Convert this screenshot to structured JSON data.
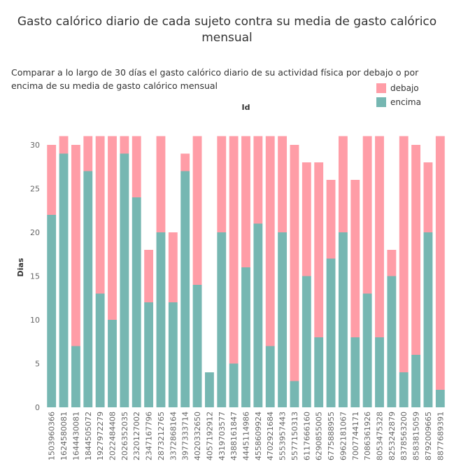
{
  "chart_data": {
    "type": "bar",
    "stacked": true,
    "title": "Gasto calórico diario de cada sujeto contra su media de gasto calórico mensual",
    "subtitle": "Comparar a lo largo de 30 días el gasto calórico diario de su actividad física por debajo o por encima de su media de gasto calórico mensual",
    "column_header": "Id",
    "xlabel": "",
    "ylabel": "Dias",
    "ylim": [
      0,
      32
    ],
    "yticks": [
      0,
      5,
      10,
      15,
      20,
      25,
      30
    ],
    "grid": false,
    "legend_position": "top-right",
    "categories": [
      "1503960366",
      "1624580081",
      "1644430081",
      "1844505072",
      "1927972279",
      "2022484408",
      "2026352035",
      "2320127002",
      "2347167796",
      "2873212765",
      "3372868164",
      "3977333714",
      "4020332650",
      "4057192912",
      "4319703577",
      "4388161847",
      "4445114986",
      "4558609924",
      "4702921684",
      "5553957443",
      "5577150313",
      "6117666160",
      "6290855005",
      "6775888955",
      "6962181067",
      "7007744171",
      "7086361926",
      "8053475328",
      "8253242879",
      "8378563200",
      "8583815059",
      "8792009665",
      "8877689391"
    ],
    "series": [
      {
        "name": "encima",
        "color": "#76b7b2",
        "values": [
          22,
          29,
          7,
          27,
          13,
          10,
          29,
          24,
          12,
          20,
          12,
          27,
          14,
          4,
          20,
          5,
          16,
          21,
          7,
          20,
          3,
          15,
          8,
          17,
          20,
          8,
          13,
          8,
          15,
          4,
          6,
          20,
          2
        ]
      },
      {
        "name": "debajo",
        "color": "#ff9da7",
        "values": [
          8,
          2,
          23,
          4,
          18,
          21,
          2,
          7,
          6,
          11,
          8,
          2,
          17,
          0,
          11,
          26,
          15,
          10,
          24,
          11,
          27,
          13,
          20,
          9,
          11,
          18,
          18,
          23,
          3,
          27,
          24,
          8,
          29
        ]
      }
    ]
  }
}
